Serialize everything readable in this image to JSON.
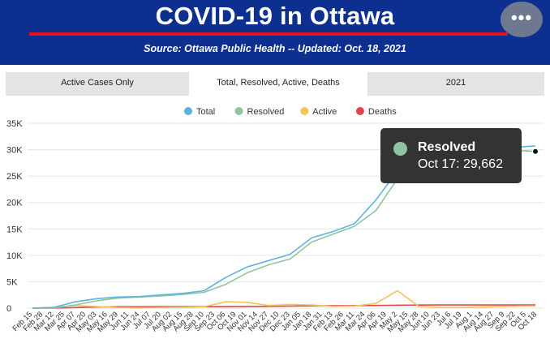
{
  "header": {
    "title": "COVID-19 in Ottawa",
    "subtitle": "Source:  Ottawa Public Health -- Updated:  Oct. 18, 2021",
    "menu_label": "•••"
  },
  "tabs": [
    {
      "label": "Active Cases Only",
      "active": false
    },
    {
      "label": "Total, Resolved, Active, Deaths",
      "active": true
    },
    {
      "label": "2021",
      "active": false
    }
  ],
  "tooltip": {
    "series": "Resolved",
    "text": "Oct 17: 29,662",
    "color": "#8fc4a0"
  },
  "chart_data": {
    "type": "line",
    "title": "",
    "xlabel": "",
    "ylabel": "",
    "ylim": [
      0,
      35000
    ],
    "yticks": [
      0,
      5000,
      10000,
      15000,
      20000,
      25000,
      30000,
      35000
    ],
    "ytick_labels": [
      "0",
      "5K",
      "10K",
      "15K",
      "20K",
      "25K",
      "30K",
      "35K"
    ],
    "grid": true,
    "legend_position": "top-center",
    "x_tick_labels": [
      "Feb 15",
      "Feb 28",
      "Mar 12",
      "Mar 25",
      "Apr 07",
      "Apr 20",
      "May 03",
      "May 16",
      "May 29",
      "Jun 11",
      "Jun 24",
      "Jul 07",
      "Jul 20",
      "Aug 02",
      "Aug 15",
      "Aug 28",
      "Sep 10",
      "Sep 23",
      "Oct 06",
      "Oct 19",
      "Nov 01",
      "Nov 14",
      "Nov 27",
      "Dec 10",
      "Dec 23",
      "Jan 05",
      "Jan 18",
      "Jan 31",
      "Feb 13",
      "Feb 26",
      "Mar 11",
      "Mar 24",
      "Apr 06",
      "Apr 19",
      "May 2",
      "May 15",
      "May 28",
      "Jun 10",
      "Jun 23",
      "Jul 6",
      "Jul 19",
      "Aug 1",
      "Aug 14",
      "Aug 27",
      "Sep 9",
      "Sep 22",
      "Oct 5",
      "Oct 18"
    ],
    "x": [
      "Feb 15",
      "Mar 12",
      "Apr 07",
      "May 03",
      "May 29",
      "Jun 24",
      "Jul 20",
      "Aug 15",
      "Sep 10",
      "Oct 06",
      "Nov 01",
      "Nov 27",
      "Dec 23",
      "Jan 18",
      "Feb 13",
      "Mar 11",
      "Apr 06",
      "May 2",
      "May 28",
      "Jun 23",
      "Jul 19",
      "Aug 14",
      "Sep 9",
      "Oct 5",
      "Oct 17"
    ],
    "series": [
      {
        "name": "Total",
        "color": "#5cb3e1",
        "values": [
          0,
          150,
          1200,
          1800,
          2100,
          2200,
          2500,
          2800,
          3300,
          5800,
          7800,
          9000,
          10200,
          13300,
          14500,
          16000,
          20500,
          26000,
          28600,
          29500,
          29700,
          29900,
          30300,
          30600,
          30700
        ]
      },
      {
        "name": "Resolved",
        "color": "#8fc4a0",
        "values": [
          0,
          20,
          600,
          1400,
          1900,
          2100,
          2300,
          2600,
          3000,
          4500,
          6700,
          8200,
          9300,
          12500,
          14000,
          15500,
          18500,
          24500,
          28000,
          29000,
          29300,
          29500,
          29700,
          29800,
          29662
        ]
      },
      {
        "name": "Active",
        "color": "#f2c65a",
        "values": [
          0,
          120,
          500,
          300,
          100,
          50,
          100,
          150,
          250,
          1200,
          1100,
          500,
          700,
          600,
          300,
          400,
          900,
          3300,
          300,
          100,
          100,
          200,
          300,
          400,
          400
        ]
      },
      {
        "name": "Deaths",
        "color": "#e0474c",
        "values": [
          0,
          5,
          100,
          220,
          260,
          265,
          270,
          270,
          275,
          290,
          320,
          340,
          390,
          430,
          460,
          480,
          510,
          560,
          590,
          595,
          595,
          597,
          600,
          610,
          612
        ]
      }
    ]
  }
}
